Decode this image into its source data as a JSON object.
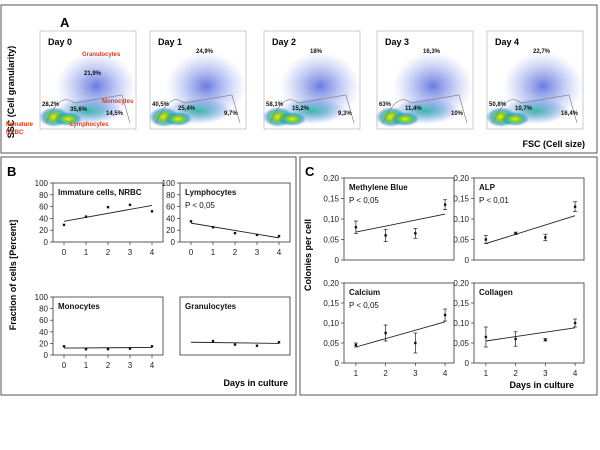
{
  "panel_a": {
    "letter": "A",
    "ylabel": "SSC (Cell granularity)",
    "xlabel": "FSC (Cell size)",
    "plots": [
      {
        "day": "Day 0",
        "percents": [
          "21,9%",
          "28,2%",
          "35,6%",
          "14,5%"
        ],
        "labels": {
          "granulocytes": "Granulocytes",
          "monocytes": "Monocytes",
          "immature": "Immature",
          "nrbc": "NRBC",
          "lymphocytes": "Lymphocytes"
        }
      },
      {
        "day": "Day 1",
        "percents": [
          "24,9%",
          "40,5%",
          "25,4%",
          "9,7%"
        ]
      },
      {
        "day": "Day 2",
        "percents": [
          "18%",
          "58,1%",
          "15,2%",
          "9,3%"
        ]
      },
      {
        "day": "Day 3",
        "percents": [
          "16,3%",
          "63%",
          "11,4%",
          "10%"
        ]
      },
      {
        "day": "Day 4",
        "percents": [
          "22,7%",
          "50,8%",
          "10,7%",
          "16,4%"
        ]
      }
    ]
  },
  "panel_b": {
    "letter": "B",
    "ylabel": "Fraction of cells [Percent]",
    "xlabel": "Days in culture"
  },
  "panel_c": {
    "letter": "C",
    "ylabel": "Colonies per cell",
    "xlabel": "Days in culture"
  },
  "chart_data": [
    {
      "type": "scatter",
      "panel": "B",
      "title": "Immature cells, NRBC",
      "p": "",
      "x": [
        0,
        1,
        2,
        3,
        4
      ],
      "y": [
        29,
        43,
        59,
        63,
        52
      ],
      "fit": [
        35,
        62
      ],
      "ylim": [
        0,
        100
      ],
      "yticks": [
        0,
        20,
        40,
        60,
        80,
        100
      ],
      "xticks": [
        0,
        1,
        2,
        3,
        4
      ],
      "show_yticks": true,
      "show_xticks": true
    },
    {
      "type": "scatter",
      "panel": "B",
      "title": "Lymphocytes",
      "p": "P < 0,05",
      "x": [
        0,
        1,
        2,
        3,
        4
      ],
      "y": [
        35,
        25,
        15,
        12,
        10
      ],
      "fit": [
        32,
        7
      ],
      "ylim": [
        0,
        100
      ],
      "yticks": [
        0,
        20,
        40,
        60,
        80,
        100
      ],
      "xticks": [
        0,
        1,
        2,
        3,
        4
      ],
      "show_yticks": true,
      "show_xticks": true
    },
    {
      "type": "scatter",
      "panel": "B",
      "title": "Monocytes",
      "p": "",
      "x": [
        0,
        1,
        2,
        3,
        4
      ],
      "y": [
        15,
        10,
        10,
        11,
        15
      ],
      "fit": [
        12,
        13
      ],
      "ylim": [
        0,
        100
      ],
      "yticks": [
        0,
        20,
        40,
        60,
        80,
        100
      ],
      "xticks": [
        0,
        1,
        2,
        3,
        4
      ],
      "show_yticks": true,
      "show_xticks": true
    },
    {
      "type": "scatter",
      "panel": "B",
      "title": "Granulocytes",
      "p": "",
      "x": [
        1,
        2,
        3,
        4
      ],
      "y": [
        24,
        18,
        16,
        22
      ],
      "fit": [
        22,
        20
      ],
      "ylim": [
        0,
        100
      ],
      "yticks": [
        0,
        20,
        40,
        60,
        80,
        100
      ],
      "xticks": [
        0,
        1,
        2,
        3,
        4
      ],
      "show_yticks": false,
      "show_xticks": false
    },
    {
      "type": "scatter",
      "panel": "C",
      "title": "Methylene Blue",
      "p": "P < 0,05",
      "x": [
        1,
        2,
        3,
        4
      ],
      "y": [
        0.08,
        0.06,
        0.065,
        0.135
      ],
      "err": [
        0.015,
        0.015,
        0.012,
        0.012
      ],
      "fit": [
        0.068,
        0.112
      ],
      "ylim": [
        0,
        0.2
      ],
      "yticks": [
        "0",
        "0,05",
        "0,10",
        "0,15",
        "0,20"
      ],
      "xticks": [
        1,
        2,
        3,
        4
      ],
      "show_yticks": true,
      "show_xticks": false
    },
    {
      "type": "scatter",
      "panel": "C",
      "title": "ALP",
      "p": "P < 0,01",
      "x": [
        1,
        2,
        3,
        4
      ],
      "y": [
        0.05,
        0.065,
        0.055,
        0.13
      ],
      "err": [
        0.01,
        0.003,
        0.008,
        0.012
      ],
      "fit": [
        0.04,
        0.108
      ],
      "ylim": [
        0,
        0.2
      ],
      "yticks": [
        "0",
        "0,05",
        "0,10",
        "0,15",
        "0,20"
      ],
      "xticks": [
        1,
        2,
        3,
        4
      ],
      "show_yticks": true,
      "show_xticks": false
    },
    {
      "type": "scatter",
      "panel": "C",
      "title": "Calcium",
      "p": "P < 0,05",
      "x": [
        1,
        2,
        3,
        4
      ],
      "y": [
        0.045,
        0.075,
        0.05,
        0.12
      ],
      "err": [
        0.005,
        0.02,
        0.025,
        0.015
      ],
      "fit": [
        0.04,
        0.103
      ],
      "ylim": [
        0,
        0.2
      ],
      "yticks": [
        "0",
        "0,05",
        "0,10",
        "0,15",
        "0,20"
      ],
      "xticks": [
        1,
        2,
        3,
        4
      ],
      "show_yticks": true,
      "show_xticks": true
    },
    {
      "type": "scatter",
      "panel": "C",
      "title": "Collagen",
      "p": "",
      "x": [
        1,
        2,
        3,
        4
      ],
      "y": [
        0.065,
        0.06,
        0.058,
        0.1
      ],
      "err": [
        0.025,
        0.018,
        0.003,
        0.01
      ],
      "fit": [
        0.055,
        0.088
      ],
      "ylim": [
        0,
        0.2
      ],
      "yticks": [
        "0",
        "0,05",
        "0,10",
        "0,15",
        "0,20"
      ],
      "xticks": [
        1,
        2,
        3,
        4
      ],
      "show_yticks": true,
      "show_xticks": true
    }
  ]
}
